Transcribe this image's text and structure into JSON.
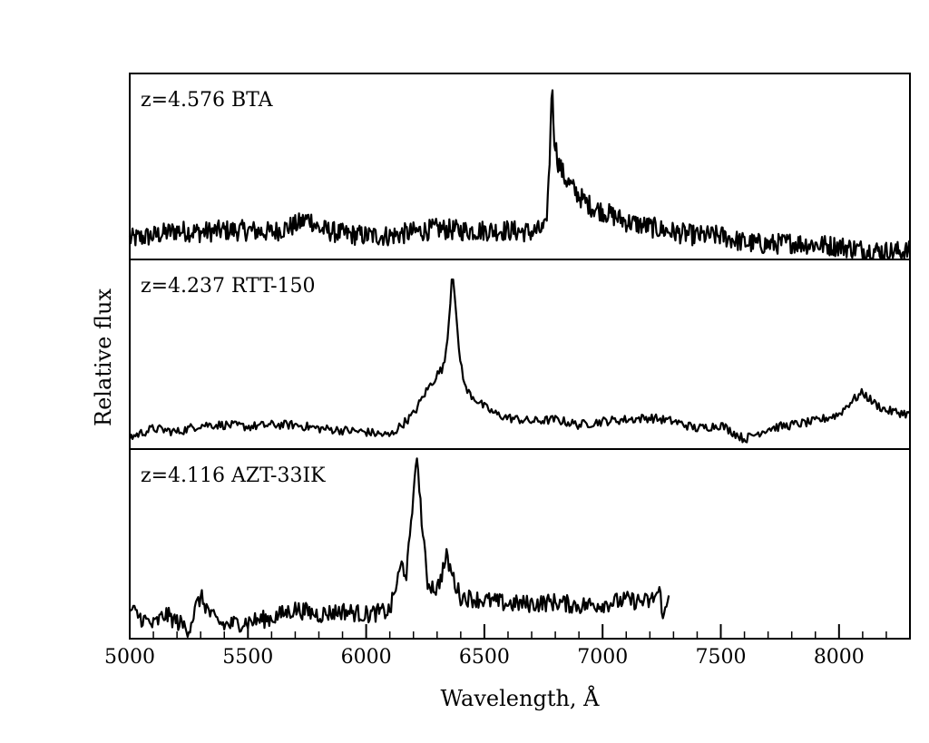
{
  "chart_data": {
    "type": "line",
    "xlabel": "Wavelength, Å",
    "ylabel": "Relative flux",
    "xlim": [
      5000,
      8300
    ],
    "xticks": [
      5000,
      5500,
      6000,
      6500,
      7000,
      7500,
      8000
    ],
    "grid": false,
    "panels": [
      {
        "label": "z=4.576 BTA",
        "series": [
          {
            "x": [
              5000,
              5100,
              5200,
              5300,
              5400,
              5500,
              5600,
              5700,
              5760,
              5800,
              5900,
              6000,
              6100,
              6200,
              6300,
              6400,
              6500,
              6600,
              6700,
              6760,
              6775,
              6785,
              6795,
              6810,
              6840,
              6880,
              6920,
              6960,
              7000,
              7100,
              7200,
              7300,
              7400,
              7500,
              7600,
              7700,
              7800,
              7900,
              8000,
              8100,
              8200,
              8300
            ],
            "y": [
              0.1,
              0.12,
              0.15,
              0.14,
              0.15,
              0.15,
              0.14,
              0.18,
              0.22,
              0.16,
              0.13,
              0.12,
              0.12,
              0.14,
              0.16,
              0.15,
              0.15,
              0.15,
              0.14,
              0.16,
              0.5,
              1.0,
              0.7,
              0.55,
              0.45,
              0.38,
              0.32,
              0.28,
              0.26,
              0.2,
              0.17,
              0.14,
              0.12,
              0.12,
              0.08,
              0.07,
              0.08,
              0.07,
              0.06,
              0.04,
              0.03,
              0.03
            ]
          }
        ]
      },
      {
        "label": "z=4.237 RTT-150",
        "series": [
          {
            "x": [
              5000,
              5100,
              5200,
              5300,
              5400,
              5500,
              5600,
              5700,
              5800,
              5900,
              6000,
              6100,
              6150,
              6200,
              6250,
              6300,
              6330,
              6350,
              6365,
              6375,
              6390,
              6420,
              6450,
              6500,
              6550,
              6600,
              6700,
              6800,
              6900,
              7000,
              7100,
              7200,
              7300,
              7400,
              7500,
              7600,
              7700,
              7800,
              7900,
              8000,
              8050,
              8100,
              8150,
              8200,
              8300
            ],
            "y": [
              0.05,
              0.1,
              0.08,
              0.12,
              0.12,
              0.11,
              0.12,
              0.12,
              0.1,
              0.09,
              0.08,
              0.06,
              0.12,
              0.18,
              0.3,
              0.4,
              0.45,
              0.7,
              1.0,
              0.85,
              0.55,
              0.32,
              0.28,
              0.22,
              0.18,
              0.16,
              0.14,
              0.15,
              0.12,
              0.14,
              0.15,
              0.16,
              0.14,
              0.1,
              0.12,
              0.04,
              0.1,
              0.12,
              0.14,
              0.18,
              0.25,
              0.3,
              0.24,
              0.2,
              0.18
            ]
          }
        ]
      },
      {
        "label": "z=4.116 AZT-33IK",
        "series": [
          {
            "x": [
              5000,
              5050,
              5100,
              5150,
              5200,
              5250,
              5280,
              5300,
              5350,
              5400,
              5500,
              5600,
              5700,
              5800,
              5900,
              6000,
              6100,
              6150,
              6170,
              6190,
              6210,
              6225,
              6240,
              6260,
              6300,
              6340,
              6380,
              6400,
              6500,
              6600,
              6700,
              6800,
              6900,
              7000,
              7100,
              7200,
              7240,
              7260,
              7280
            ],
            "y": [
              0.15,
              0.1,
              0.06,
              0.12,
              0.08,
              0.04,
              0.16,
              0.22,
              0.1,
              0.06,
              0.08,
              0.1,
              0.15,
              0.12,
              0.14,
              0.12,
              0.14,
              0.4,
              0.35,
              0.6,
              1.0,
              0.85,
              0.55,
              0.3,
              0.26,
              0.44,
              0.28,
              0.22,
              0.2,
              0.18,
              0.18,
              0.19,
              0.17,
              0.18,
              0.2,
              0.19,
              0.25,
              0.1,
              0.22
            ]
          }
        ]
      }
    ]
  }
}
